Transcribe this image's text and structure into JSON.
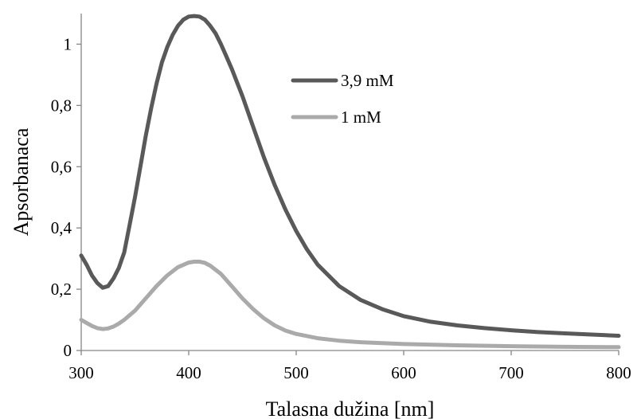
{
  "chart_data": {
    "type": "line",
    "title": "",
    "xlabel": "Talasna dužina [nm]",
    "ylabel": "Apsorbanaca",
    "xlim": [
      300,
      800
    ],
    "ylim": [
      0,
      1.1
    ],
    "x_ticks": [
      300,
      400,
      500,
      600,
      700,
      800
    ],
    "y_ticks": [
      0,
      0.2,
      0.4,
      0.6,
      0.8,
      1
    ],
    "x_tick_labels": [
      "300",
      "400",
      "500",
      "600",
      "700",
      "800"
    ],
    "y_tick_labels": [
      "0",
      "0,2",
      "0,4",
      "0,6",
      "0,8",
      "1"
    ],
    "grid": false,
    "legend_position": "top-center",
    "series": [
      {
        "name": "3,9 mM",
        "color": "#595959",
        "x": [
          300,
          305,
          310,
          315,
          320,
          325,
          330,
          335,
          338,
          340,
          345,
          350,
          355,
          360,
          365,
          370,
          375,
          380,
          385,
          390,
          395,
          400,
          405,
          410,
          415,
          420,
          425,
          430,
          435,
          440,
          450,
          460,
          470,
          480,
          490,
          500,
          510,
          520,
          540,
          560,
          580,
          600,
          625,
          650,
          675,
          700,
          725,
          750,
          775,
          800
        ],
        "values": [
          0.31,
          0.28,
          0.245,
          0.22,
          0.205,
          0.21,
          0.235,
          0.27,
          0.3,
          0.32,
          0.41,
          0.5,
          0.6,
          0.7,
          0.79,
          0.87,
          0.94,
          0.99,
          1.03,
          1.06,
          1.08,
          1.09,
          1.092,
          1.09,
          1.08,
          1.06,
          1.035,
          1.0,
          0.96,
          0.92,
          0.83,
          0.73,
          0.63,
          0.54,
          0.46,
          0.39,
          0.33,
          0.28,
          0.21,
          0.165,
          0.135,
          0.112,
          0.094,
          0.082,
          0.073,
          0.066,
          0.06,
          0.056,
          0.052,
          0.048
        ]
      },
      {
        "name": "1 mM",
        "color": "#aaaaaa",
        "x": [
          300,
          305,
          310,
          315,
          320,
          325,
          330,
          335,
          340,
          350,
          360,
          370,
          380,
          390,
          400,
          405,
          410,
          415,
          420,
          430,
          440,
          450,
          460,
          470,
          480,
          490,
          500,
          520,
          540,
          560,
          600,
          650,
          700,
          750,
          800
        ],
        "values": [
          0.1,
          0.09,
          0.08,
          0.073,
          0.07,
          0.072,
          0.078,
          0.088,
          0.1,
          0.13,
          0.17,
          0.21,
          0.245,
          0.272,
          0.287,
          0.29,
          0.29,
          0.286,
          0.277,
          0.25,
          0.21,
          0.17,
          0.135,
          0.105,
          0.082,
          0.065,
          0.054,
          0.04,
          0.032,
          0.027,
          0.021,
          0.017,
          0.014,
          0.012,
          0.011
        ]
      }
    ]
  }
}
